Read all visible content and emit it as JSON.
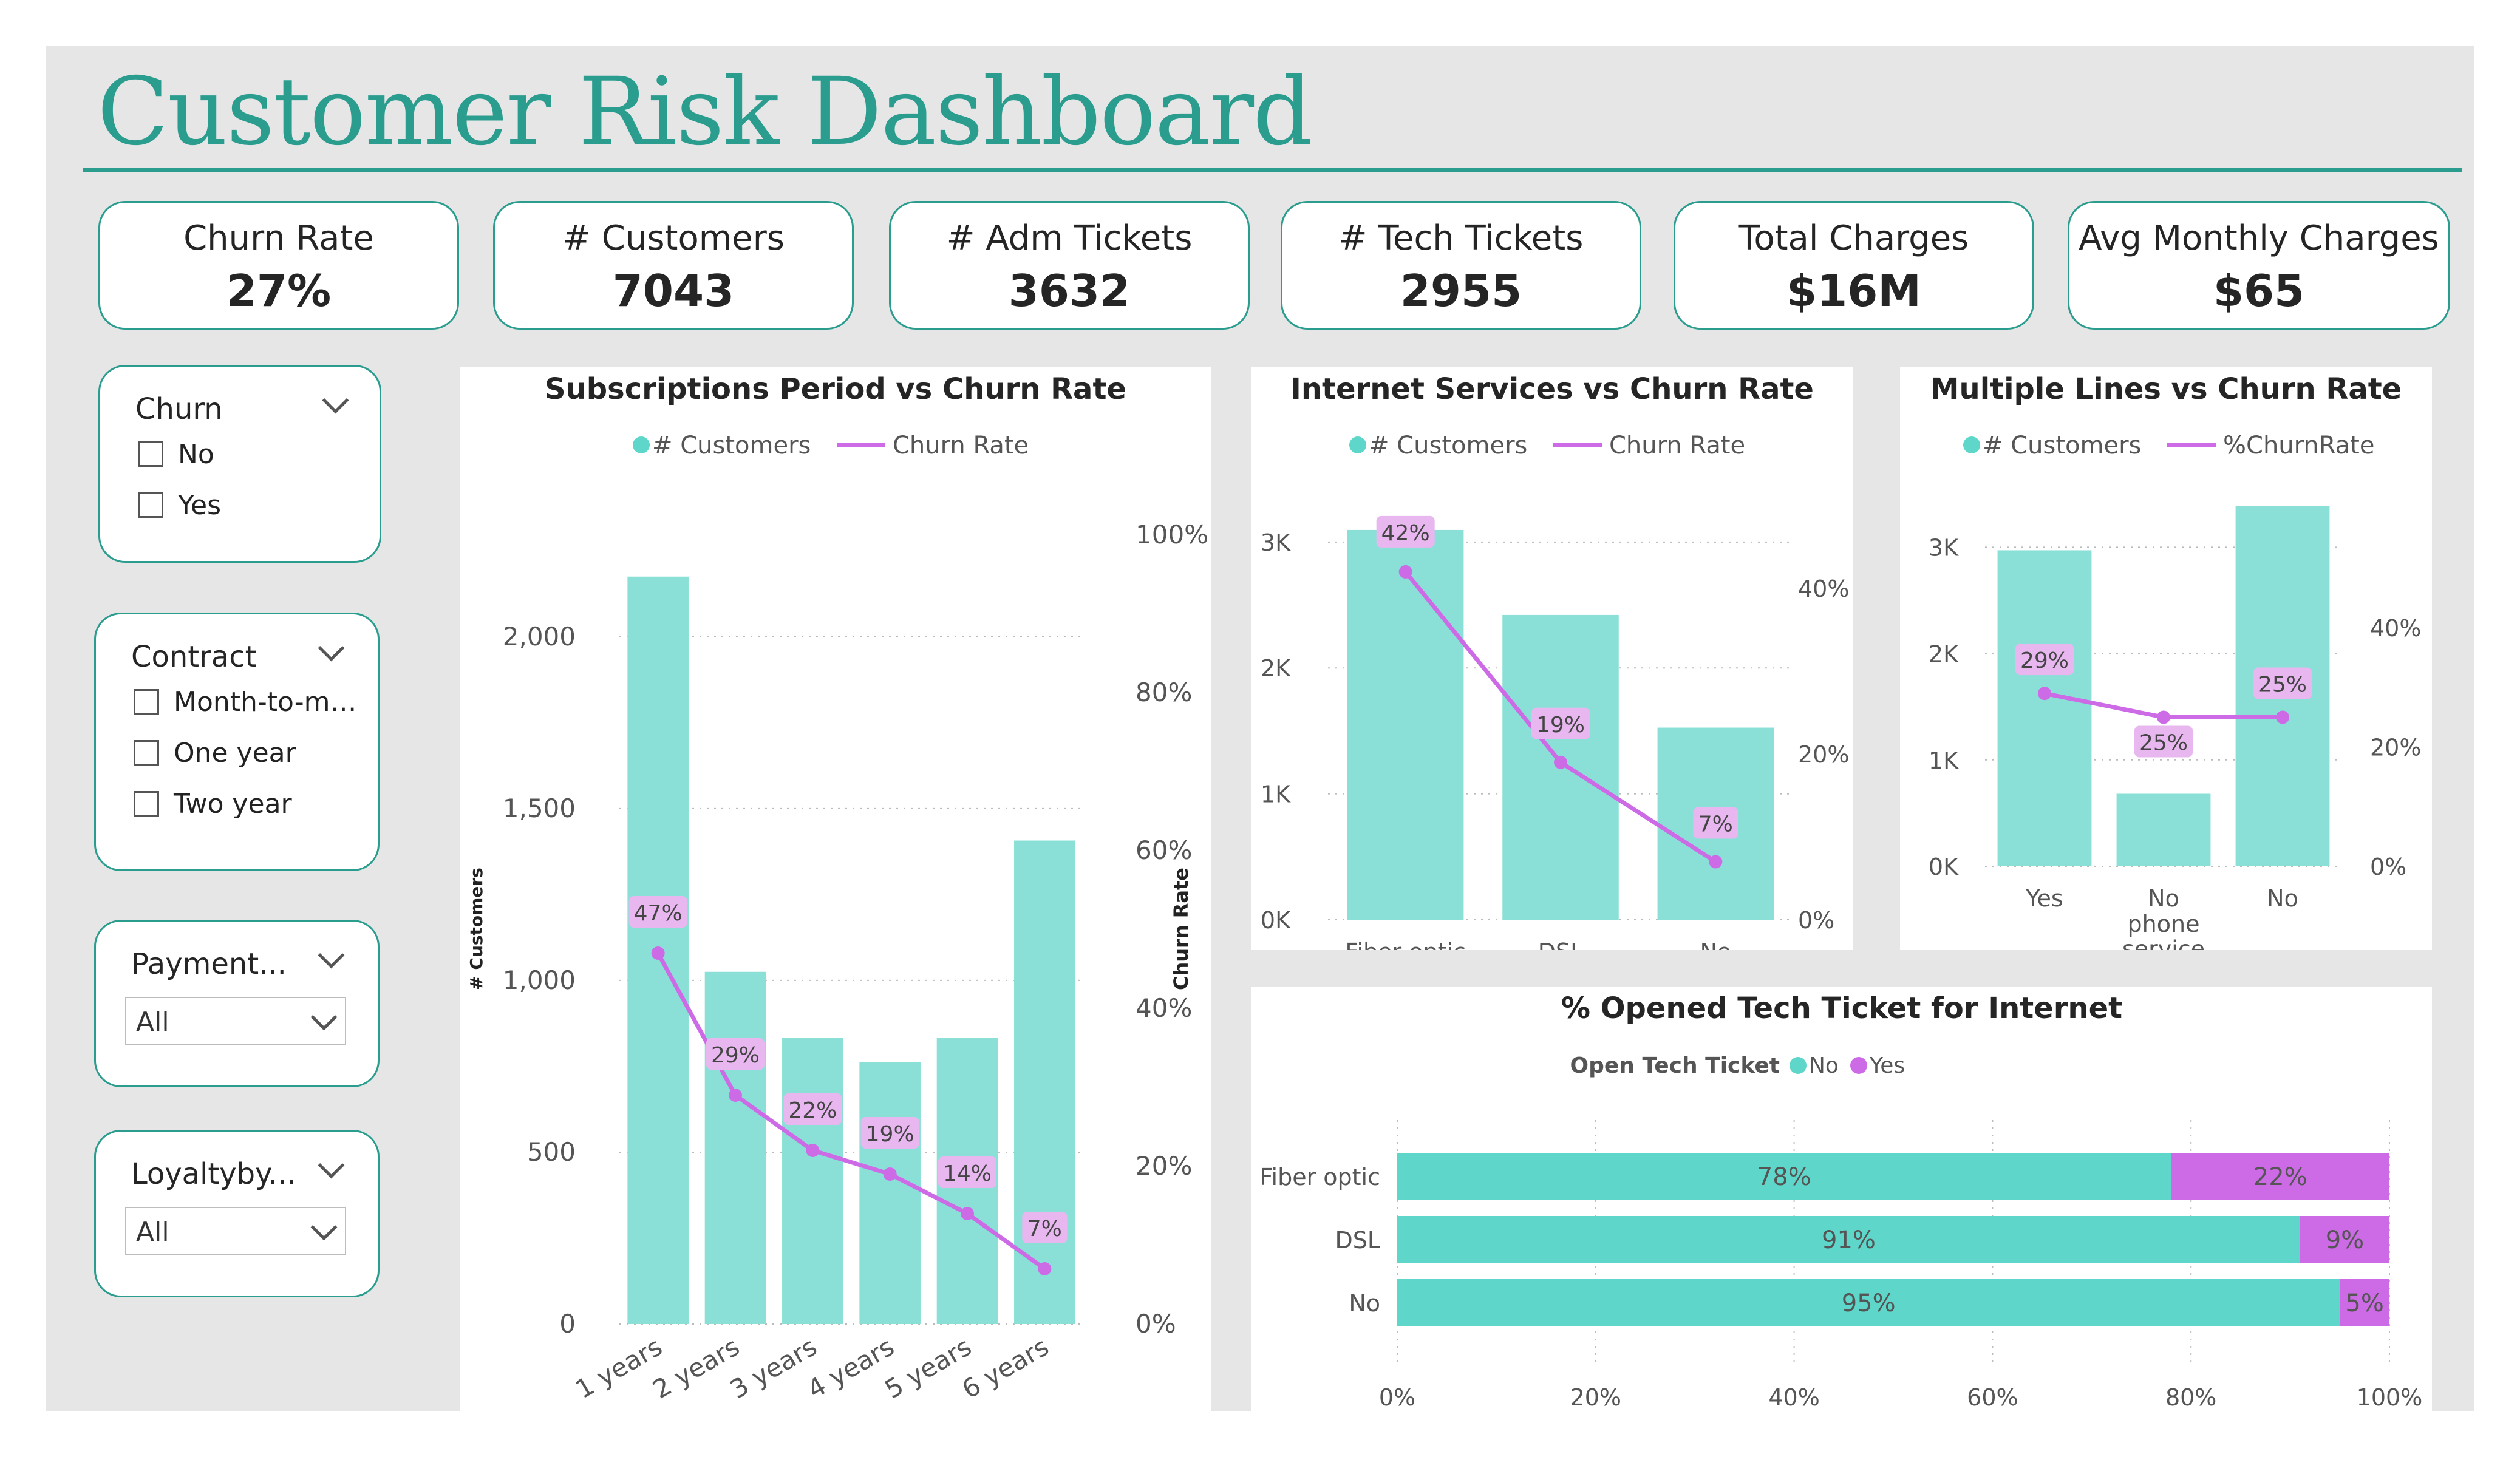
{
  "title": "Customer Risk Dashboard",
  "colors": {
    "teal": "#2a9d8f",
    "bar": "#8ae0d6",
    "bar_strong": "#5ed6c9",
    "line": "#cd6be7",
    "label_bg": "#e8b7f0"
  },
  "kpis": [
    {
      "label": "Churn Rate",
      "value": "27%"
    },
    {
      "label": "# Customers",
      "value": "7043"
    },
    {
      "label": "# Adm Tickets",
      "value": "3632"
    },
    {
      "label": "# Tech Tickets",
      "value": "2955"
    },
    {
      "label": "Total Charges",
      "value": "$16M"
    },
    {
      "label": "Avg Monthly Charges",
      "value": "$65"
    }
  ],
  "slicers": {
    "churn": {
      "title": "Churn",
      "options": [
        "No",
        "Yes"
      ],
      "icon": "chevron-down-icon"
    },
    "contract": {
      "title": "Contract",
      "options": [
        "Month-to-m…",
        "One year",
        "Two year"
      ],
      "icon": "chevron-down-icon"
    },
    "payment": {
      "title": "Payment...",
      "value": "All",
      "icon": "chevron-down-icon"
    },
    "loyalty": {
      "title": "Loyaltyby...",
      "value": "All",
      "icon": "chevron-down-icon"
    }
  },
  "chart_data": [
    {
      "type": "bar",
      "title": "Subscriptions Period vs Churn Rate",
      "legend": [
        "# Customers",
        "Churn Rate"
      ],
      "legend_position": "top",
      "categories": [
        "1 years",
        "2 years",
        "3 years",
        "4 years",
        "5 years",
        "6 years"
      ],
      "series": [
        {
          "name": "# Customers",
          "values": [
            2175,
            1025,
            832,
            762,
            832,
            1407
          ]
        },
        {
          "name": "Churn Rate",
          "values": [
            47,
            29,
            22,
            19,
            14,
            7
          ],
          "labels": [
            "47%",
            "29%",
            "22%",
            "19%",
            "14%",
            "7%"
          ]
        }
      ],
      "ylabel": "# Customers",
      "ylabel_right": "Churn Rate",
      "y_ticks": [
        "0",
        "500",
        "1,000",
        "1,500",
        "2,000"
      ],
      "y2_ticks": [
        "0%",
        "20%",
        "40%",
        "60%",
        "80%",
        "100%"
      ],
      "ylim": [
        0,
        2300
      ],
      "y2lim": [
        0,
        100
      ]
    },
    {
      "type": "bar",
      "title": "Internet Services vs Churn Rate",
      "legend": [
        "# Customers",
        "Churn Rate"
      ],
      "legend_position": "top",
      "categories": [
        "Fiber optic",
        "DSL",
        "No"
      ],
      "series": [
        {
          "name": "# Customers",
          "values": [
            3096,
            2421,
            1526
          ]
        },
        {
          "name": "Churn Rate",
          "values": [
            42,
            19,
            7
          ],
          "labels": [
            "42%",
            "19%",
            "7%"
          ]
        }
      ],
      "y_ticks": [
        "0K",
        "1K",
        "2K",
        "3K"
      ],
      "y2_ticks": [
        "0%",
        "20%",
        "40%"
      ],
      "ylim": [
        0,
        3250
      ],
      "y2lim": [
        0,
        45
      ]
    },
    {
      "type": "bar",
      "title": "Multiple Lines vs Churn Rate",
      "legend": [
        "# Customers",
        "%ChurnRate"
      ],
      "legend_position": "top",
      "categories": [
        "Yes",
        "No phone service",
        "No"
      ],
      "series": [
        {
          "name": "# Customers",
          "values": [
            2971,
            682,
            3390
          ]
        },
        {
          "name": "%ChurnRate",
          "values": [
            29,
            25,
            25
          ],
          "labels": [
            "29%",
            "25%",
            "25%"
          ]
        }
      ],
      "y_ticks": [
        "0K",
        "1K",
        "2K",
        "3K"
      ],
      "y2_ticks": [
        "0%",
        "20%",
        "40%"
      ],
      "ylim": [
        0,
        3550
      ],
      "y2lim": [
        0,
        45
      ]
    },
    {
      "type": "bar",
      "orientation": "horizontal",
      "stacked": true,
      "title": "% Opened Tech Ticket for Internet",
      "legend_title": "Open Tech Ticket",
      "legend": [
        "No",
        "Yes"
      ],
      "legend_position": "top",
      "categories": [
        "Fiber optic",
        "DSL",
        "No"
      ],
      "series": [
        {
          "name": "No",
          "values": [
            78,
            91,
            95
          ],
          "labels": [
            "78%",
            "91%",
            "95%"
          ]
        },
        {
          "name": "Yes",
          "values": [
            22,
            9,
            5
          ],
          "labels": [
            "22%",
            "9%",
            "5%"
          ]
        }
      ],
      "x_ticks": [
        "0%",
        "20%",
        "40%",
        "60%",
        "80%",
        "100%"
      ],
      "xlim": [
        0,
        100
      ]
    }
  ]
}
